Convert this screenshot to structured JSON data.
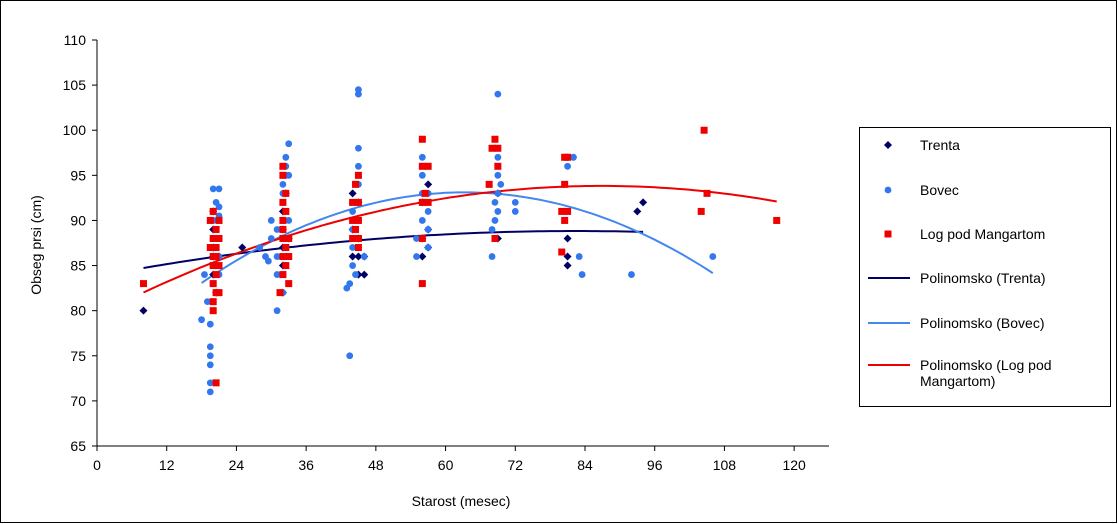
{
  "chart_data": {
    "type": "scatter",
    "title": "",
    "xlabel": "Starost (mesec)",
    "ylabel": "Obseg prsi (cm)",
    "xlim": [
      0,
      126
    ],
    "ylim": [
      65,
      110
    ],
    "xticks": [
      0,
      12,
      24,
      36,
      48,
      60,
      72,
      84,
      96,
      108,
      120
    ],
    "yticks": [
      65,
      70,
      75,
      80,
      85,
      90,
      95,
      100,
      105,
      110
    ],
    "xtick_labels": [
      "0",
      "12",
      "24",
      "36",
      "48",
      "60",
      "72",
      "84",
      "96",
      "108",
      "120"
    ],
    "ytick_labels": [
      "65",
      "70",
      "75",
      "80",
      "85",
      "90",
      "95",
      "100",
      "105",
      "110"
    ],
    "grid": false,
    "legend_position": "right",
    "series": [
      {
        "name": "Trenta",
        "kind": "scatter",
        "marker": "diamond",
        "color": "#000066",
        "points": [
          [
            8,
            80
          ],
          [
            20,
            84
          ],
          [
            20,
            86
          ],
          [
            20,
            87
          ],
          [
            20,
            89
          ],
          [
            20,
            91
          ],
          [
            20.5,
            82
          ],
          [
            21,
            86
          ],
          [
            25,
            87
          ],
          [
            32,
            82
          ],
          [
            32,
            85
          ],
          [
            32,
            87
          ],
          [
            32,
            89
          ],
          [
            32,
            91
          ],
          [
            32.5,
            93
          ],
          [
            33,
            88
          ],
          [
            44,
            86
          ],
          [
            44,
            89
          ],
          [
            44,
            93
          ],
          [
            45,
            84
          ],
          [
            45,
            86
          ],
          [
            45,
            88
          ],
          [
            45,
            92
          ],
          [
            46,
            84
          ],
          [
            46,
            86
          ],
          [
            56,
            86
          ],
          [
            56,
            88
          ],
          [
            56,
            92
          ],
          [
            57,
            87
          ],
          [
            57,
            89
          ],
          [
            57,
            94
          ],
          [
            69,
            88
          ],
          [
            69,
            93
          ],
          [
            81,
            85
          ],
          [
            81,
            86
          ],
          [
            81,
            88
          ],
          [
            93,
            91
          ],
          [
            94,
            92
          ]
        ]
      },
      {
        "name": "Bovec",
        "kind": "scatter",
        "marker": "circle",
        "color": "#3377ee",
        "points": [
          [
            18,
            79
          ],
          [
            18.5,
            84
          ],
          [
            19,
            81
          ],
          [
            19.5,
            71
          ],
          [
            19.5,
            72
          ],
          [
            19.5,
            74
          ],
          [
            19.5,
            75
          ],
          [
            19.5,
            76
          ],
          [
            19.5,
            78.5
          ],
          [
            20,
            83
          ],
          [
            20,
            85
          ],
          [
            20,
            88
          ],
          [
            20,
            90
          ],
          [
            20,
            93.5
          ],
          [
            20.5,
            92
          ],
          [
            20.5,
            89
          ],
          [
            21,
            93.5
          ],
          [
            21,
            90.5
          ],
          [
            21,
            91.5
          ],
          [
            21,
            88
          ],
          [
            21,
            86
          ],
          [
            21,
            84
          ],
          [
            28,
            87
          ],
          [
            29,
            86
          ],
          [
            29.5,
            85.5
          ],
          [
            30,
            88
          ],
          [
            30,
            90
          ],
          [
            31,
            80
          ],
          [
            31,
            84
          ],
          [
            31,
            86
          ],
          [
            31,
            89
          ],
          [
            32,
            82
          ],
          [
            32,
            84
          ],
          [
            32,
            86
          ],
          [
            32,
            88
          ],
          [
            32,
            90
          ],
          [
            32,
            92
          ],
          [
            32,
            93
          ],
          [
            32,
            94
          ],
          [
            32.5,
            95
          ],
          [
            32.5,
            96
          ],
          [
            32.5,
            97
          ],
          [
            33,
            98.5
          ],
          [
            33,
            95
          ],
          [
            33,
            90
          ],
          [
            33,
            86
          ],
          [
            43,
            82.5
          ],
          [
            43.5,
            83
          ],
          [
            43.5,
            75
          ],
          [
            44,
            85
          ],
          [
            44,
            87
          ],
          [
            44,
            89
          ],
          [
            44,
            91
          ],
          [
            44,
            92
          ],
          [
            44.5,
            84
          ],
          [
            45,
            104
          ],
          [
            45,
            104.5
          ],
          [
            45,
            98
          ],
          [
            45,
            96
          ],
          [
            45,
            94
          ],
          [
            45,
            92
          ],
          [
            45,
            88
          ],
          [
            46,
            86
          ],
          [
            55,
            86
          ],
          [
            55,
            88
          ],
          [
            56,
            90
          ],
          [
            56,
            92
          ],
          [
            56,
            93
          ],
          [
            56,
            95
          ],
          [
            56,
            97
          ],
          [
            57,
            87
          ],
          [
            57,
            89
          ],
          [
            57,
            91
          ],
          [
            57,
            93
          ],
          [
            68,
            86
          ],
          [
            68,
            89
          ],
          [
            68.5,
            90
          ],
          [
            68.5,
            92
          ],
          [
            69,
            104
          ],
          [
            69,
            95
          ],
          [
            69,
            97
          ],
          [
            69,
            93
          ],
          [
            69,
            91
          ],
          [
            69.5,
            94
          ],
          [
            72,
            91
          ],
          [
            72,
            92
          ],
          [
            81,
            96
          ],
          [
            81,
            97
          ],
          [
            82,
            97
          ],
          [
            82,
            97
          ],
          [
            83,
            86
          ],
          [
            83.5,
            84
          ],
          [
            92,
            84
          ],
          [
            106,
            86
          ]
        ]
      },
      {
        "name": "Log pod Mangartom",
        "kind": "scatter",
        "marker": "square",
        "color": "#ee0000",
        "points": [
          [
            8,
            83
          ],
          [
            19.5,
            87
          ],
          [
            19.5,
            90
          ],
          [
            20,
            80
          ],
          [
            20,
            81
          ],
          [
            20,
            83
          ],
          [
            20,
            85
          ],
          [
            20,
            86
          ],
          [
            20,
            88
          ],
          [
            20,
            91
          ],
          [
            20.5,
            72
          ],
          [
            20.5,
            82
          ],
          [
            20.5,
            84
          ],
          [
            20.5,
            86
          ],
          [
            20.5,
            87
          ],
          [
            20.5,
            89
          ],
          [
            21,
            90
          ],
          [
            21,
            85
          ],
          [
            21,
            88
          ],
          [
            21,
            82
          ],
          [
            31.5,
            82
          ],
          [
            32,
            84
          ],
          [
            32,
            86
          ],
          [
            32,
            88
          ],
          [
            32,
            89
          ],
          [
            32,
            90
          ],
          [
            32,
            92
          ],
          [
            32,
            95
          ],
          [
            32,
            96
          ],
          [
            32.5,
            85
          ],
          [
            32.5,
            87
          ],
          [
            32.5,
            91
          ],
          [
            32.5,
            93
          ],
          [
            33,
            88
          ],
          [
            33,
            86
          ],
          [
            33,
            83
          ],
          [
            44,
            88
          ],
          [
            44,
            90
          ],
          [
            44,
            92
          ],
          [
            44.5,
            89
          ],
          [
            44.5,
            94
          ],
          [
            45,
            95
          ],
          [
            45,
            92
          ],
          [
            45,
            90
          ],
          [
            45,
            88
          ],
          [
            45,
            87
          ],
          [
            56,
            83
          ],
          [
            56,
            88
          ],
          [
            56,
            92
          ],
          [
            56,
            96
          ],
          [
            56,
            99
          ],
          [
            56.5,
            93
          ],
          [
            57,
            96
          ],
          [
            57,
            92
          ],
          [
            67.5,
            94
          ],
          [
            68,
            98
          ],
          [
            68.5,
            88
          ],
          [
            68.5,
            99
          ],
          [
            69,
            96
          ],
          [
            69,
            98
          ],
          [
            80,
            86.5
          ],
          [
            80,
            91
          ],
          [
            80.5,
            90
          ],
          [
            80.5,
            94
          ],
          [
            80.5,
            97
          ],
          [
            81,
            91
          ],
          [
            81,
            97
          ],
          [
            104,
            91
          ],
          [
            104.5,
            100
          ],
          [
            105,
            93
          ],
          [
            117,
            90
          ]
        ]
      },
      {
        "name": "Polinomsko (Trenta)",
        "kind": "trendline",
        "color": "#000066",
        "coefficients": [
          83.8,
          0.122,
          -0.00074
        ],
        "x_range": [
          8,
          94
        ]
      },
      {
        "name": "Polinomsko (Bovec)",
        "kind": "trendline",
        "color": "#4488ee",
        "coefficients": [
          73.5,
          0.62,
          -0.0049
        ],
        "x_range": [
          18,
          106
        ]
      },
      {
        "name": "Polinomsko (Log pod Mangartom)",
        "kind": "trendline",
        "color": "#ee0000",
        "coefficients": [
          79.5,
          0.33,
          -0.0019
        ],
        "x_range": [
          8,
          117
        ]
      }
    ]
  },
  "legend": {
    "items": [
      {
        "label": "Trenta",
        "symbol": "diamond",
        "color": "#000066"
      },
      {
        "label": "Bovec",
        "symbol": "circle",
        "color": "#3377ee"
      },
      {
        "label": "Log pod Mangartom",
        "symbol": "square",
        "color": "#ee0000"
      },
      {
        "label": "Polinomsko (Trenta)",
        "symbol": "line",
        "color": "#000066"
      },
      {
        "label": "Polinomsko (Bovec)",
        "symbol": "line",
        "color": "#4488ee"
      },
      {
        "label": "Polinomsko (Log pod Mangartom)",
        "symbol": "line",
        "color": "#ee0000"
      }
    ]
  }
}
